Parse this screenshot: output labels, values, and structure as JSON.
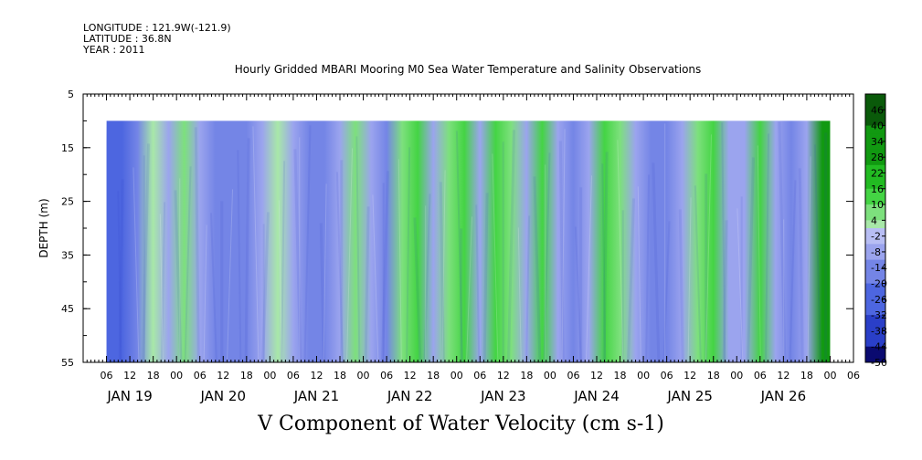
{
  "header": {
    "longitude": "LONGITUDE : 121.9W(-121.9)",
    "latitude": "LATITUDE : 36.8N",
    "year": "YEAR : 2011",
    "title": "Hourly Gridded MBARI Mooring M0 Sea Water Temperature and Salinity Observations"
  },
  "chart_data": {
    "type": "heatmap",
    "title": "V Component of Water Velocity (cm s-1)",
    "ylabel": "DEPTH (m)",
    "xlabel": "",
    "y_axis": {
      "ticks": [
        5,
        15,
        25,
        35,
        45,
        55
      ],
      "range": [
        5,
        55
      ],
      "reversed": true
    },
    "x_axis": {
      "hour_ticks": [
        "06",
        "12",
        "18",
        "00",
        "06",
        "12",
        "18",
        "00",
        "06",
        "12",
        "18",
        "00",
        "06",
        "12",
        "18",
        "00",
        "06",
        "12",
        "18",
        "00",
        "06",
        "12",
        "18",
        "00",
        "06",
        "12",
        "18",
        "00",
        "06",
        "12",
        "18",
        "00",
        "06"
      ],
      "date_labels": [
        "JAN 19",
        "JAN 20",
        "JAN 21",
        "JAN 22",
        "JAN 23",
        "JAN 24",
        "JAN 25",
        "JAN 26"
      ],
      "range_hours": [
        0,
        198
      ]
    },
    "data_depth_range": [
      10,
      55
    ],
    "data_time_range_hours": [
      6,
      192
    ],
    "colorbar": {
      "labels": [
        46,
        40,
        34,
        28,
        22,
        16,
        10,
        4,
        -2,
        -8,
        -14,
        -20,
        -26,
        -32,
        -38,
        -44,
        -50
      ],
      "min": -50,
      "max": 52,
      "step": 3
    },
    "bands": [
      {
        "t": 6,
        "v": -24
      },
      {
        "t": 10,
        "v": -22
      },
      {
        "t": 14,
        "v": -18
      },
      {
        "t": 18,
        "v": 2
      },
      {
        "t": 22,
        "v": -6
      },
      {
        "t": 26,
        "v": 4
      },
      {
        "t": 30,
        "v": -8
      },
      {
        "t": 34,
        "v": -14
      },
      {
        "t": 38,
        "v": -18
      },
      {
        "t": 42,
        "v": -12
      },
      {
        "t": 46,
        "v": -4
      },
      {
        "t": 50,
        "v": 2
      },
      {
        "t": 54,
        "v": -8
      },
      {
        "t": 58,
        "v": -12
      },
      {
        "t": 62,
        "v": -16
      },
      {
        "t": 66,
        "v": -10
      },
      {
        "t": 70,
        "v": 6
      },
      {
        "t": 74,
        "v": -4
      },
      {
        "t": 78,
        "v": -14
      },
      {
        "t": 82,
        "v": 8
      },
      {
        "t": 86,
        "v": 10
      },
      {
        "t": 90,
        "v": -6
      },
      {
        "t": 94,
        "v": 4
      },
      {
        "t": 98,
        "v": 12
      },
      {
        "t": 102,
        "v": -10
      },
      {
        "t": 106,
        "v": 10
      },
      {
        "t": 110,
        "v": 6
      },
      {
        "t": 114,
        "v": -10
      },
      {
        "t": 118,
        "v": 12
      },
      {
        "t": 122,
        "v": -4
      },
      {
        "t": 126,
        "v": -16
      },
      {
        "t": 130,
        "v": -6
      },
      {
        "t": 134,
        "v": 12
      },
      {
        "t": 138,
        "v": 6
      },
      {
        "t": 142,
        "v": -8
      },
      {
        "t": 146,
        "v": -14
      },
      {
        "t": 150,
        "v": -18
      },
      {
        "t": 154,
        "v": -10
      },
      {
        "t": 158,
        "v": 6
      },
      {
        "t": 162,
        "v": 10
      },
      {
        "t": 166,
        "v": -4
      },
      {
        "t": 170,
        "v": -10
      },
      {
        "t": 174,
        "v": 14
      },
      {
        "t": 178,
        "v": -6
      },
      {
        "t": 182,
        "v": -12
      },
      {
        "t": 186,
        "v": -8
      },
      {
        "t": 190,
        "v": 28
      }
    ]
  }
}
